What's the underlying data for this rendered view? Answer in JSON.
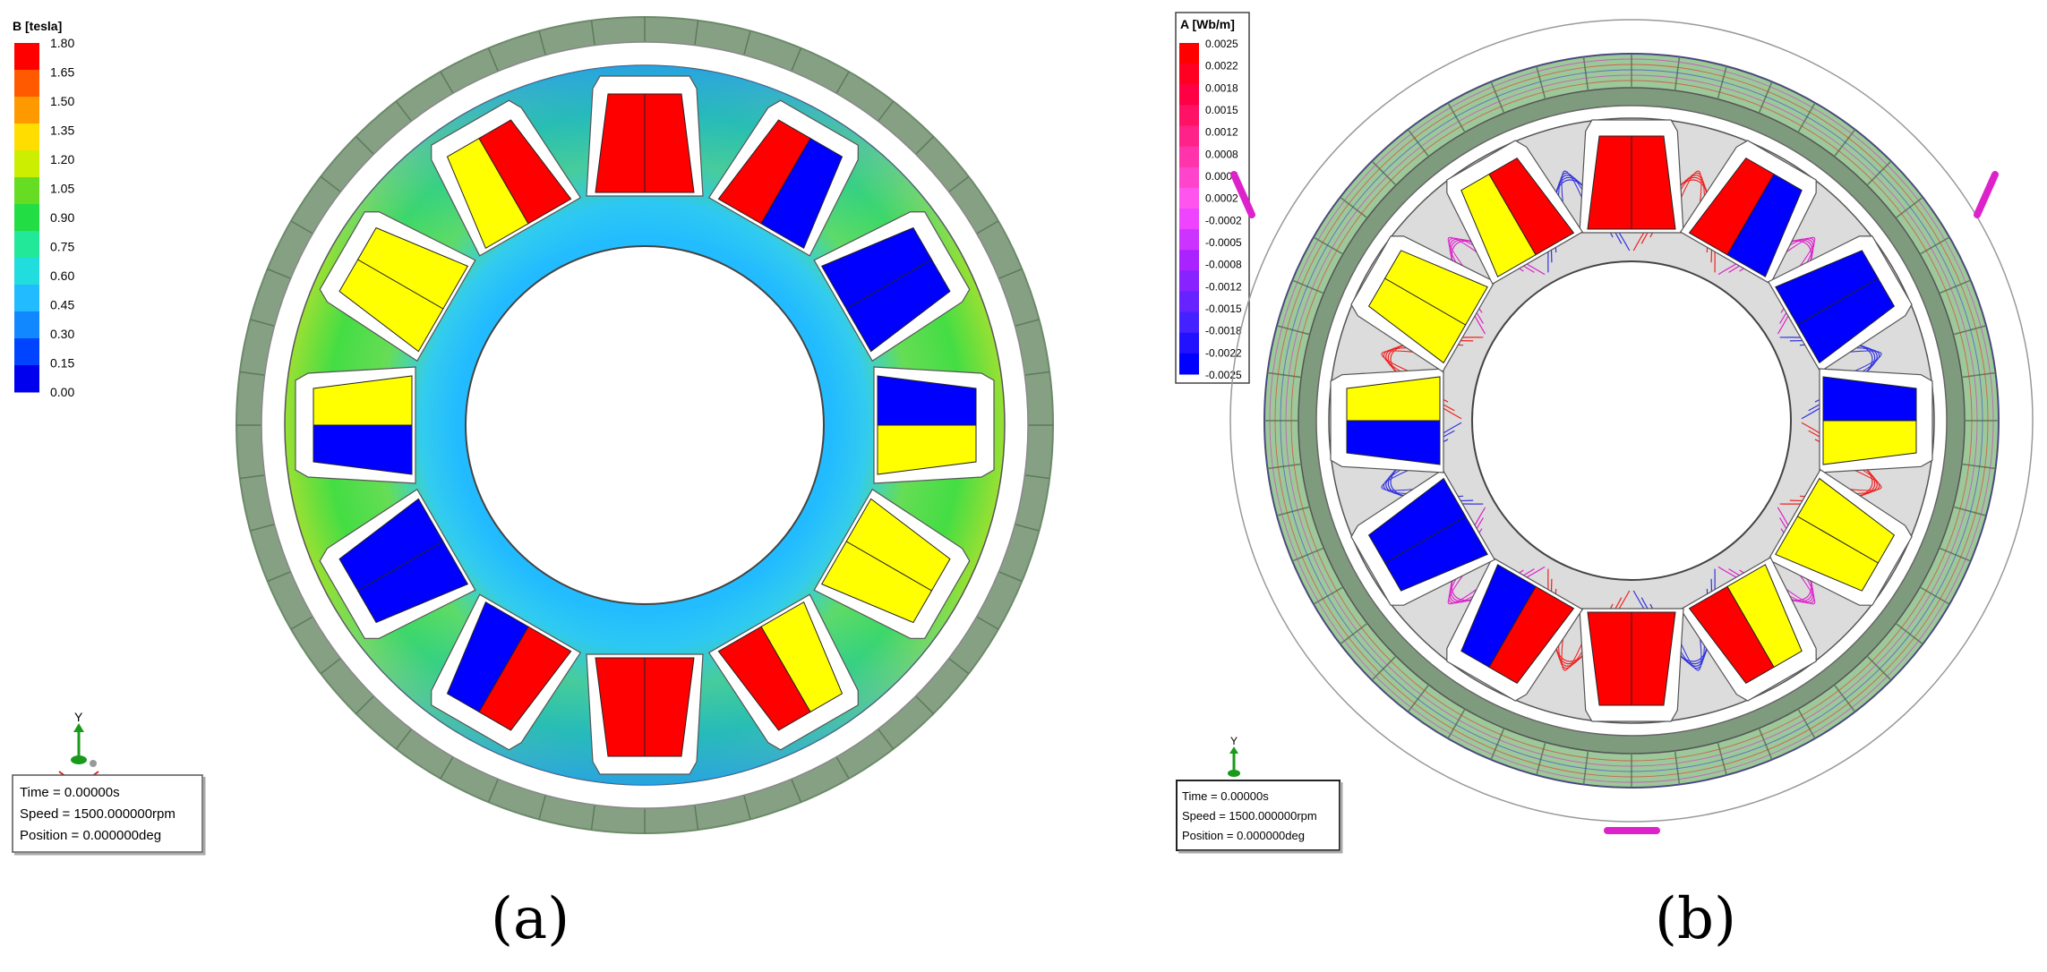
{
  "panel_a": {
    "legend_title": "B [tesla]",
    "legend_ticks": [
      "1.80",
      "1.65",
      "1.50",
      "1.35",
      "1.20",
      "1.05",
      "0.90",
      "0.75",
      "0.60",
      "0.45",
      "0.30",
      "0.15",
      "0.00"
    ],
    "legend_colors": [
      "#ff0000",
      "#ff5a00",
      "#ff9900",
      "#ffdd00",
      "#ccee00",
      "#66dd22",
      "#22dd44",
      "#22e899",
      "#22dddd",
      "#22bbff",
      "#1188ff",
      "#0044ff",
      "#0000ee"
    ],
    "axis_label": "Y",
    "info_time": "Time     = 0.00000s",
    "info_speed": "Speed     = 1500.000000rpm",
    "info_position": "Position = 0.000000deg",
    "caption": "(a)"
  },
  "panel_b": {
    "legend_title": "A [Wb/m]",
    "legend_ticks": [
      "0.0025",
      "0.0022",
      "0.0018",
      "0.0015",
      "0.0012",
      "0.0008",
      "0.0005",
      "0.0002",
      "-0.0002",
      "-0.0005",
      "-0.0008",
      "-0.0012",
      "-0.0015",
      "-0.0018",
      "-0.0022",
      "-0.0025"
    ],
    "legend_colors": [
      "#ff0000",
      "#ff0022",
      "#ff0044",
      "#ff1166",
      "#ff2288",
      "#ff33aa",
      "#ff44cc",
      "#ff55ee",
      "#ee44ff",
      "#cc33ff",
      "#aa22ff",
      "#8822ff",
      "#6622ff",
      "#4422ff",
      "#2211ff",
      "#0000ff"
    ],
    "axis_label": "Y",
    "info_time": "Time     = 0.00000s",
    "info_speed": "Speed     = 1500.000000rpm",
    "info_position": "Position = 0.000000deg",
    "caption": "(b)"
  },
  "colors": {
    "magnet_red": "#ff0000",
    "magnet_yellow": "#ffff00",
    "magnet_blue": "#0000ff",
    "outer_ring": "#86a084",
    "iron_field": "#44dd44",
    "iron_light": "#22ccff",
    "rotor_gray": "#dcdcdc",
    "stator_green": "#9cc89a",
    "flux_red": "#ee2222",
    "flux_magenta": "#dd22cc",
    "flux_blue": "#3333dd"
  }
}
